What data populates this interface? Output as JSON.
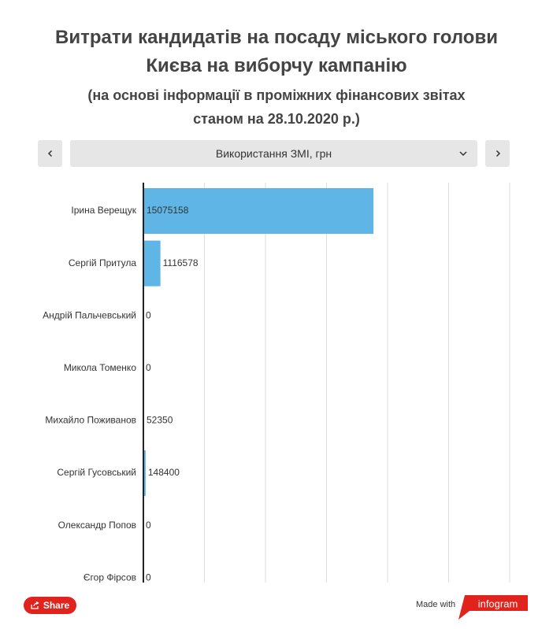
{
  "chart_data": {
    "type": "bar",
    "orientation": "horizontal",
    "title": "Витрати кандидатів на посаду міського голови Києва на виборчу кампанію",
    "subtitle": "(на основі інформації в проміжних фінансових звітах станом на 28.10.2020 р.)",
    "selector": "Використання ЗМІ, грн",
    "categories": [
      "Ірина Верещук",
      "Сергій Притула",
      "Андрій Пальчевський",
      "Микола Томенко",
      "Михайло Поживанов",
      "Сергій Гусовський",
      "Олександр Попов",
      "Єгор Фірсов"
    ],
    "values": [
      15075158,
      1116578,
      0,
      0,
      52350,
      148400,
      0,
      0
    ],
    "color": "#5fb5e5",
    "xlim": [
      0,
      24000000
    ],
    "xticks": [
      4000000,
      8000000,
      12000000,
      16000000,
      20000000,
      24000000
    ],
    "grid": true
  },
  "footer": {
    "share": "Share",
    "made_with": "Made with",
    "brand": "infogram"
  }
}
